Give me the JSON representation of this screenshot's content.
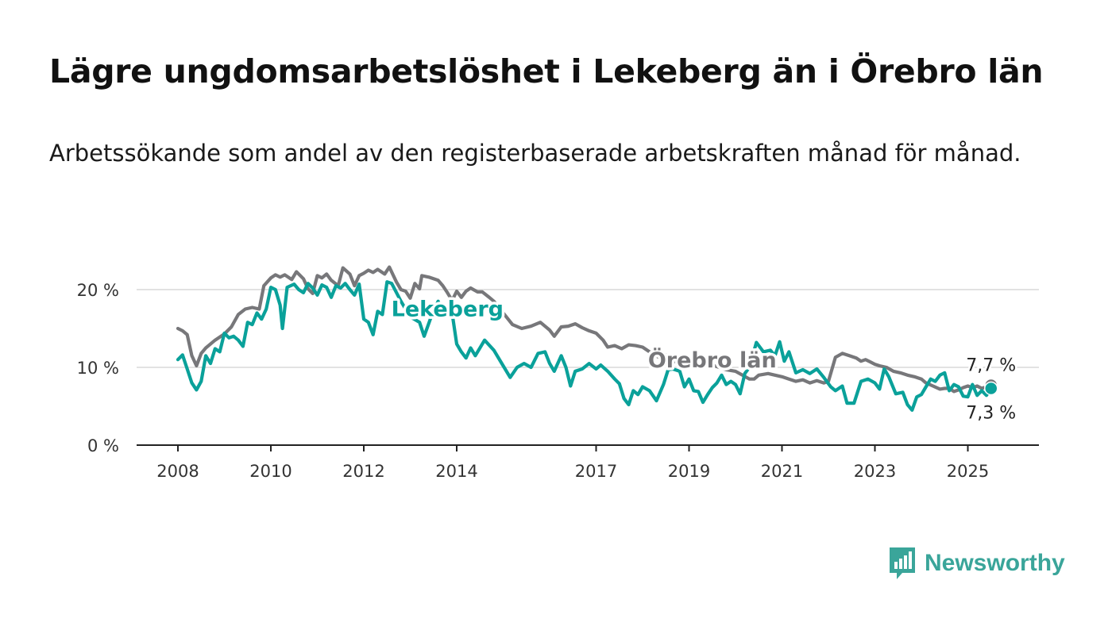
{
  "title": "Lägre ungdomsarbetslöshet i Lekeberg än i Örebro län",
  "subtitle": "Arbetssökande som andel av den registerbaserade arbetskraften månad för månad.",
  "brand": {
    "name": "Newsworthy",
    "icon": "newsworthy-logo-icon",
    "color": "#3aa59a"
  },
  "chart_data": {
    "type": "line",
    "ylim": [
      0,
      20
    ],
    "xlim": [
      2008,
      2025.7
    ],
    "y_ticks": [
      {
        "value": 0,
        "label": "0 %"
      },
      {
        "value": 10,
        "label": "10 %"
      },
      {
        "value": 20,
        "label": "20 %"
      }
    ],
    "x_ticks": [
      {
        "value": 2008,
        "label": "2008"
      },
      {
        "value": 2010,
        "label": "2010"
      },
      {
        "value": 2012,
        "label": "2012"
      },
      {
        "value": 2014,
        "label": "2014"
      },
      {
        "value": 2017,
        "label": "2017"
      },
      {
        "value": 2019,
        "label": "2019"
      },
      {
        "value": 2021,
        "label": "2021"
      },
      {
        "value": 2023,
        "label": "2023"
      },
      {
        "value": 2025,
        "label": "2025"
      }
    ],
    "grid": true,
    "series": [
      {
        "name": "Örebro län",
        "color": "#77777a",
        "end_label": "7,7 %",
        "points": [
          [
            2008.0,
            15.0
          ],
          [
            2008.1,
            14.7
          ],
          [
            2008.2,
            14.2
          ],
          [
            2008.3,
            11.5
          ],
          [
            2008.4,
            10.2
          ],
          [
            2008.5,
            11.8
          ],
          [
            2008.6,
            12.5
          ],
          [
            2008.8,
            13.5
          ],
          [
            2009.0,
            14.3
          ],
          [
            2009.15,
            15.2
          ],
          [
            2009.3,
            16.8
          ],
          [
            2009.45,
            17.5
          ],
          [
            2009.6,
            17.7
          ],
          [
            2009.75,
            17.5
          ],
          [
            2009.85,
            20.5
          ],
          [
            2010.0,
            21.5
          ],
          [
            2010.1,
            21.9
          ],
          [
            2010.2,
            21.6
          ],
          [
            2010.3,
            21.9
          ],
          [
            2010.45,
            21.3
          ],
          [
            2010.55,
            22.3
          ],
          [
            2010.7,
            21.4
          ],
          [
            2010.8,
            20.1
          ],
          [
            2010.9,
            19.5
          ],
          [
            2011.0,
            21.8
          ],
          [
            2011.1,
            21.5
          ],
          [
            2011.2,
            22.0
          ],
          [
            2011.3,
            21.2
          ],
          [
            2011.45,
            20.5
          ],
          [
            2011.55,
            22.8
          ],
          [
            2011.7,
            22.0
          ],
          [
            2011.8,
            20.5
          ],
          [
            2011.9,
            21.8
          ],
          [
            2012.0,
            22.1
          ],
          [
            2012.1,
            22.5
          ],
          [
            2012.2,
            22.2
          ],
          [
            2012.3,
            22.6
          ],
          [
            2012.45,
            22.0
          ],
          [
            2012.55,
            22.9
          ],
          [
            2012.7,
            21.0
          ],
          [
            2012.8,
            20.0
          ],
          [
            2012.9,
            19.8
          ],
          [
            2013.0,
            18.9
          ],
          [
            2013.1,
            20.8
          ],
          [
            2013.2,
            20.1
          ],
          [
            2013.25,
            21.8
          ],
          [
            2013.4,
            21.6
          ],
          [
            2013.5,
            21.4
          ],
          [
            2013.6,
            21.2
          ],
          [
            2013.7,
            20.5
          ],
          [
            2013.8,
            19.6
          ],
          [
            2013.9,
            18.6
          ],
          [
            2014.0,
            19.8
          ],
          [
            2014.1,
            19.0
          ],
          [
            2014.2,
            19.8
          ],
          [
            2014.3,
            20.2
          ],
          [
            2014.45,
            19.7
          ],
          [
            2014.55,
            19.7
          ],
          [
            2014.7,
            19.0
          ],
          [
            2014.8,
            18.5
          ],
          [
            2015.0,
            17.0
          ],
          [
            2015.2,
            15.5
          ],
          [
            2015.4,
            15.0
          ],
          [
            2015.6,
            15.3
          ],
          [
            2015.8,
            15.8
          ],
          [
            2016.0,
            14.8
          ],
          [
            2016.1,
            14.0
          ],
          [
            2016.25,
            15.2
          ],
          [
            2016.4,
            15.3
          ],
          [
            2016.55,
            15.6
          ],
          [
            2016.7,
            15.1
          ],
          [
            2016.85,
            14.7
          ],
          [
            2017.0,
            14.4
          ],
          [
            2017.15,
            13.5
          ],
          [
            2017.25,
            12.6
          ],
          [
            2017.4,
            12.8
          ],
          [
            2017.55,
            12.4
          ],
          [
            2017.7,
            12.9
          ],
          [
            2017.85,
            12.8
          ],
          [
            2018.0,
            12.6
          ],
          [
            2018.2,
            11.8
          ],
          [
            2018.35,
            11.3
          ],
          [
            2018.5,
            11.6
          ],
          [
            2018.65,
            10.8
          ],
          [
            2018.8,
            10.6
          ],
          [
            2019.0,
            11.0
          ],
          [
            2019.15,
            11.3
          ],
          [
            2019.3,
            10.7
          ],
          [
            2019.5,
            10.3
          ],
          [
            2019.65,
            10.0
          ],
          [
            2019.8,
            9.7
          ],
          [
            2020.0,
            9.5
          ],
          [
            2020.15,
            9.0
          ],
          [
            2020.3,
            8.5
          ],
          [
            2020.4,
            8.5
          ],
          [
            2020.5,
            9.0
          ],
          [
            2020.7,
            9.2
          ],
          [
            2020.85,
            9.0
          ],
          [
            2021.0,
            8.8
          ],
          [
            2021.15,
            8.5
          ],
          [
            2021.3,
            8.2
          ],
          [
            2021.45,
            8.4
          ],
          [
            2021.6,
            8.0
          ],
          [
            2021.75,
            8.3
          ],
          [
            2021.9,
            8.0
          ],
          [
            2022.0,
            8.2
          ],
          [
            2022.15,
            11.3
          ],
          [
            2022.3,
            11.8
          ],
          [
            2022.45,
            11.5
          ],
          [
            2022.6,
            11.2
          ],
          [
            2022.7,
            10.8
          ],
          [
            2022.8,
            11.0
          ],
          [
            2022.9,
            10.7
          ],
          [
            2023.0,
            10.4
          ],
          [
            2023.1,
            10.2
          ],
          [
            2023.25,
            10.0
          ],
          [
            2023.4,
            9.5
          ],
          [
            2023.55,
            9.3
          ],
          [
            2023.7,
            9.0
          ],
          [
            2023.85,
            8.8
          ],
          [
            2024.0,
            8.5
          ],
          [
            2024.1,
            8.0
          ],
          [
            2024.25,
            7.6
          ],
          [
            2024.4,
            7.2
          ],
          [
            2024.5,
            7.3
          ],
          [
            2024.6,
            7.3
          ],
          [
            2024.7,
            6.9
          ],
          [
            2024.8,
            7.1
          ],
          [
            2024.9,
            7.4
          ],
          [
            2025.0,
            7.6
          ],
          [
            2025.1,
            7.4
          ],
          [
            2025.2,
            7.6
          ],
          [
            2025.3,
            7.3
          ],
          [
            2025.4,
            7.5
          ],
          [
            2025.5,
            7.7
          ]
        ]
      },
      {
        "name": "Lekeberg",
        "color": "#0aa19a",
        "end_label": "7,3 %",
        "points": [
          [
            2008.0,
            11.0
          ],
          [
            2008.1,
            11.6
          ],
          [
            2008.2,
            9.8
          ],
          [
            2008.3,
            8.0
          ],
          [
            2008.4,
            7.1
          ],
          [
            2008.5,
            8.2
          ],
          [
            2008.6,
            11.5
          ],
          [
            2008.7,
            10.5
          ],
          [
            2008.8,
            12.4
          ],
          [
            2008.9,
            12.0
          ],
          [
            2009.0,
            14.4
          ],
          [
            2009.1,
            13.8
          ],
          [
            2009.2,
            14.0
          ],
          [
            2009.3,
            13.5
          ],
          [
            2009.4,
            12.7
          ],
          [
            2009.5,
            15.8
          ],
          [
            2009.6,
            15.5
          ],
          [
            2009.7,
            17.0
          ],
          [
            2009.8,
            16.2
          ],
          [
            2009.9,
            17.5
          ],
          [
            2010.0,
            20.3
          ],
          [
            2010.1,
            20.0
          ],
          [
            2010.2,
            18.0
          ],
          [
            2010.25,
            15.0
          ],
          [
            2010.35,
            20.3
          ],
          [
            2010.5,
            20.7
          ],
          [
            2010.6,
            20.0
          ],
          [
            2010.7,
            19.6
          ],
          [
            2010.8,
            20.8
          ],
          [
            2010.9,
            20.2
          ],
          [
            2011.0,
            19.3
          ],
          [
            2011.1,
            20.6
          ],
          [
            2011.2,
            20.3
          ],
          [
            2011.3,
            19.0
          ],
          [
            2011.4,
            20.5
          ],
          [
            2011.5,
            20.2
          ],
          [
            2011.6,
            20.8
          ],
          [
            2011.7,
            20.0
          ],
          [
            2011.8,
            19.3
          ],
          [
            2011.9,
            20.7
          ],
          [
            2012.0,
            16.2
          ],
          [
            2012.1,
            15.8
          ],
          [
            2012.2,
            14.2
          ],
          [
            2012.3,
            17.2
          ],
          [
            2012.4,
            16.8
          ],
          [
            2012.5,
            21.0
          ],
          [
            2012.6,
            20.8
          ],
          [
            2012.8,
            18.5
          ],
          [
            2013.0,
            16.5
          ],
          [
            2013.2,
            15.8
          ],
          [
            2013.3,
            14.0
          ],
          [
            2013.45,
            16.5
          ],
          [
            2013.6,
            18.5
          ],
          [
            2013.75,
            16.5
          ],
          [
            2013.9,
            17.0
          ],
          [
            2014.0,
            13.0
          ],
          [
            2014.1,
            12.0
          ],
          [
            2014.2,
            11.2
          ],
          [
            2014.3,
            12.5
          ],
          [
            2014.4,
            11.5
          ],
          [
            2014.6,
            13.5
          ],
          [
            2014.8,
            12.2
          ],
          [
            2015.0,
            10.2
          ],
          [
            2015.15,
            8.7
          ],
          [
            2015.3,
            10.0
          ],
          [
            2015.45,
            10.5
          ],
          [
            2015.6,
            10.0
          ],
          [
            2015.75,
            11.8
          ],
          [
            2015.9,
            12.0
          ],
          [
            2016.0,
            10.5
          ],
          [
            2016.1,
            9.5
          ],
          [
            2016.25,
            11.5
          ],
          [
            2016.35,
            10.0
          ],
          [
            2016.45,
            7.6
          ],
          [
            2016.55,
            9.5
          ],
          [
            2016.7,
            9.8
          ],
          [
            2016.85,
            10.5
          ],
          [
            2017.0,
            9.8
          ],
          [
            2017.1,
            10.3
          ],
          [
            2017.25,
            9.5
          ],
          [
            2017.4,
            8.5
          ],
          [
            2017.5,
            7.9
          ],
          [
            2017.6,
            6.0
          ],
          [
            2017.7,
            5.2
          ],
          [
            2017.8,
            7.0
          ],
          [
            2017.9,
            6.5
          ],
          [
            2018.0,
            7.5
          ],
          [
            2018.15,
            7.0
          ],
          [
            2018.3,
            5.7
          ],
          [
            2018.45,
            7.8
          ],
          [
            2018.55,
            9.7
          ],
          [
            2018.65,
            9.8
          ],
          [
            2018.8,
            9.5
          ],
          [
            2018.9,
            7.5
          ],
          [
            2019.0,
            8.5
          ],
          [
            2019.1,
            7.0
          ],
          [
            2019.2,
            6.9
          ],
          [
            2019.3,
            5.5
          ],
          [
            2019.4,
            6.5
          ],
          [
            2019.5,
            7.4
          ],
          [
            2019.6,
            8.0
          ],
          [
            2019.7,
            9.0
          ],
          [
            2019.8,
            7.8
          ],
          [
            2019.9,
            8.2
          ],
          [
            2020.0,
            7.8
          ],
          [
            2020.1,
            6.6
          ],
          [
            2020.2,
            9.2
          ],
          [
            2020.3,
            10.0
          ],
          [
            2020.45,
            13.2
          ],
          [
            2020.6,
            12.0
          ],
          [
            2020.75,
            12.2
          ],
          [
            2020.85,
            11.5
          ],
          [
            2020.95,
            13.3
          ],
          [
            2021.05,
            10.8
          ],
          [
            2021.15,
            12.0
          ],
          [
            2021.3,
            9.3
          ],
          [
            2021.45,
            9.7
          ],
          [
            2021.6,
            9.2
          ],
          [
            2021.75,
            9.8
          ],
          [
            2021.9,
            8.7
          ],
          [
            2022.05,
            7.5
          ],
          [
            2022.15,
            7.0
          ],
          [
            2022.3,
            7.6
          ],
          [
            2022.4,
            5.4
          ],
          [
            2022.55,
            5.4
          ],
          [
            2022.7,
            8.2
          ],
          [
            2022.85,
            8.5
          ],
          [
            2023.0,
            8.0
          ],
          [
            2023.1,
            7.2
          ],
          [
            2023.2,
            9.8
          ],
          [
            2023.3,
            8.8
          ],
          [
            2023.45,
            6.6
          ],
          [
            2023.6,
            6.8
          ],
          [
            2023.7,
            5.2
          ],
          [
            2023.8,
            4.5
          ],
          [
            2023.9,
            6.2
          ],
          [
            2024.0,
            6.5
          ],
          [
            2024.1,
            7.5
          ],
          [
            2024.2,
            8.5
          ],
          [
            2024.3,
            8.2
          ],
          [
            2024.4,
            9.0
          ],
          [
            2024.5,
            9.3
          ],
          [
            2024.6,
            7.0
          ],
          [
            2024.7,
            7.8
          ],
          [
            2024.8,
            7.5
          ],
          [
            2024.9,
            6.3
          ],
          [
            2025.0,
            6.2
          ],
          [
            2025.1,
            7.8
          ],
          [
            2025.2,
            6.4
          ],
          [
            2025.3,
            7.0
          ],
          [
            2025.4,
            6.4
          ],
          [
            2025.5,
            7.3
          ]
        ]
      }
    ],
    "labels": [
      {
        "text": "Lekeberg",
        "series": "Lekeberg",
        "anchor_x": 2013.8,
        "anchor_y": 16.6
      },
      {
        "text": "Örebro län",
        "series": "Örebro län",
        "anchor_x": 2019.5,
        "anchor_y": 10.0
      }
    ]
  }
}
